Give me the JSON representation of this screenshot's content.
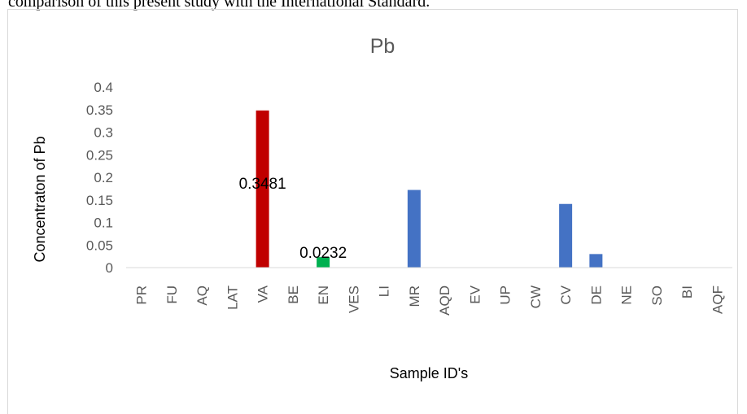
{
  "document": {
    "caption": "comparison of this present study with the International Standard."
  },
  "chart_data": {
    "type": "bar",
    "title": "Pb",
    "xlabel": "Sample ID's",
    "ylabel": "Concentraton of Pb",
    "ylim": [
      0,
      0.4
    ],
    "yticks": [
      "0",
      "0.05",
      "0.1",
      "0.15",
      "0.2",
      "0.25",
      "0.3",
      "0.35",
      "0.4"
    ],
    "categories": [
      "PR",
      "FU",
      "AQ",
      "LAT",
      "VA",
      "BE",
      "EN",
      "VES",
      "LI",
      "MR",
      "AQD",
      "EV",
      "UP",
      "CW",
      "CV",
      "DE",
      "NE",
      "SO",
      "BI",
      "AQF"
    ],
    "values": [
      0,
      0,
      0,
      0,
      0.3481,
      0,
      0.0232,
      0,
      0,
      0.172,
      0,
      0,
      0,
      0,
      0.141,
      0.03,
      0,
      0,
      0,
      0
    ],
    "bar_colors": [
      "#4472c4",
      "#4472c4",
      "#4472c4",
      "#4472c4",
      "#c00000",
      "#4472c4",
      "#00b050",
      "#4472c4",
      "#4472c4",
      "#4472c4",
      "#4472c4",
      "#4472c4",
      "#4472c4",
      "#4472c4",
      "#4472c4",
      "#4472c4",
      "#4472c4",
      "#4472c4",
      "#4472c4",
      "#4472c4"
    ],
    "data_labels": [
      {
        "category": "VA",
        "text": "0.3481"
      },
      {
        "category": "EN",
        "text": "0.0232"
      }
    ],
    "grid": false,
    "legend": "none"
  }
}
